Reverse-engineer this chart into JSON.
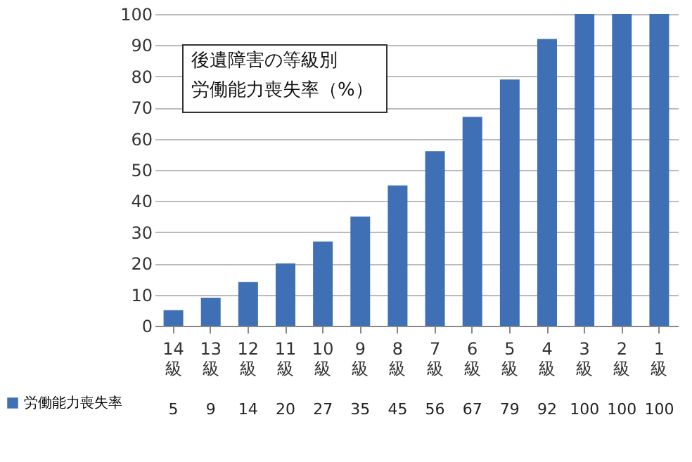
{
  "chart_data": {
    "type": "bar",
    "title": "後遺障害の等級別",
    "subtitle": "労働能力喪失率（%）",
    "categories": [
      "14級",
      "13級",
      "12級",
      "11級",
      "10級",
      "9級",
      "8級",
      "7級",
      "6級",
      "5級",
      "4級",
      "3級",
      "2級",
      "1級"
    ],
    "series": [
      {
        "name": "労働能力喪失率",
        "color": "#3f6fb5",
        "values": [
          5,
          9,
          14,
          20,
          27,
          35,
          45,
          56,
          67,
          79,
          92,
          100,
          100,
          100
        ]
      }
    ],
    "ylim": [
      0,
      100
    ],
    "yticks": [
      0,
      10,
      20,
      30,
      40,
      50,
      60,
      70,
      80,
      90,
      100
    ],
    "grid": "y",
    "data_labels": true,
    "legend": "bottom left"
  }
}
